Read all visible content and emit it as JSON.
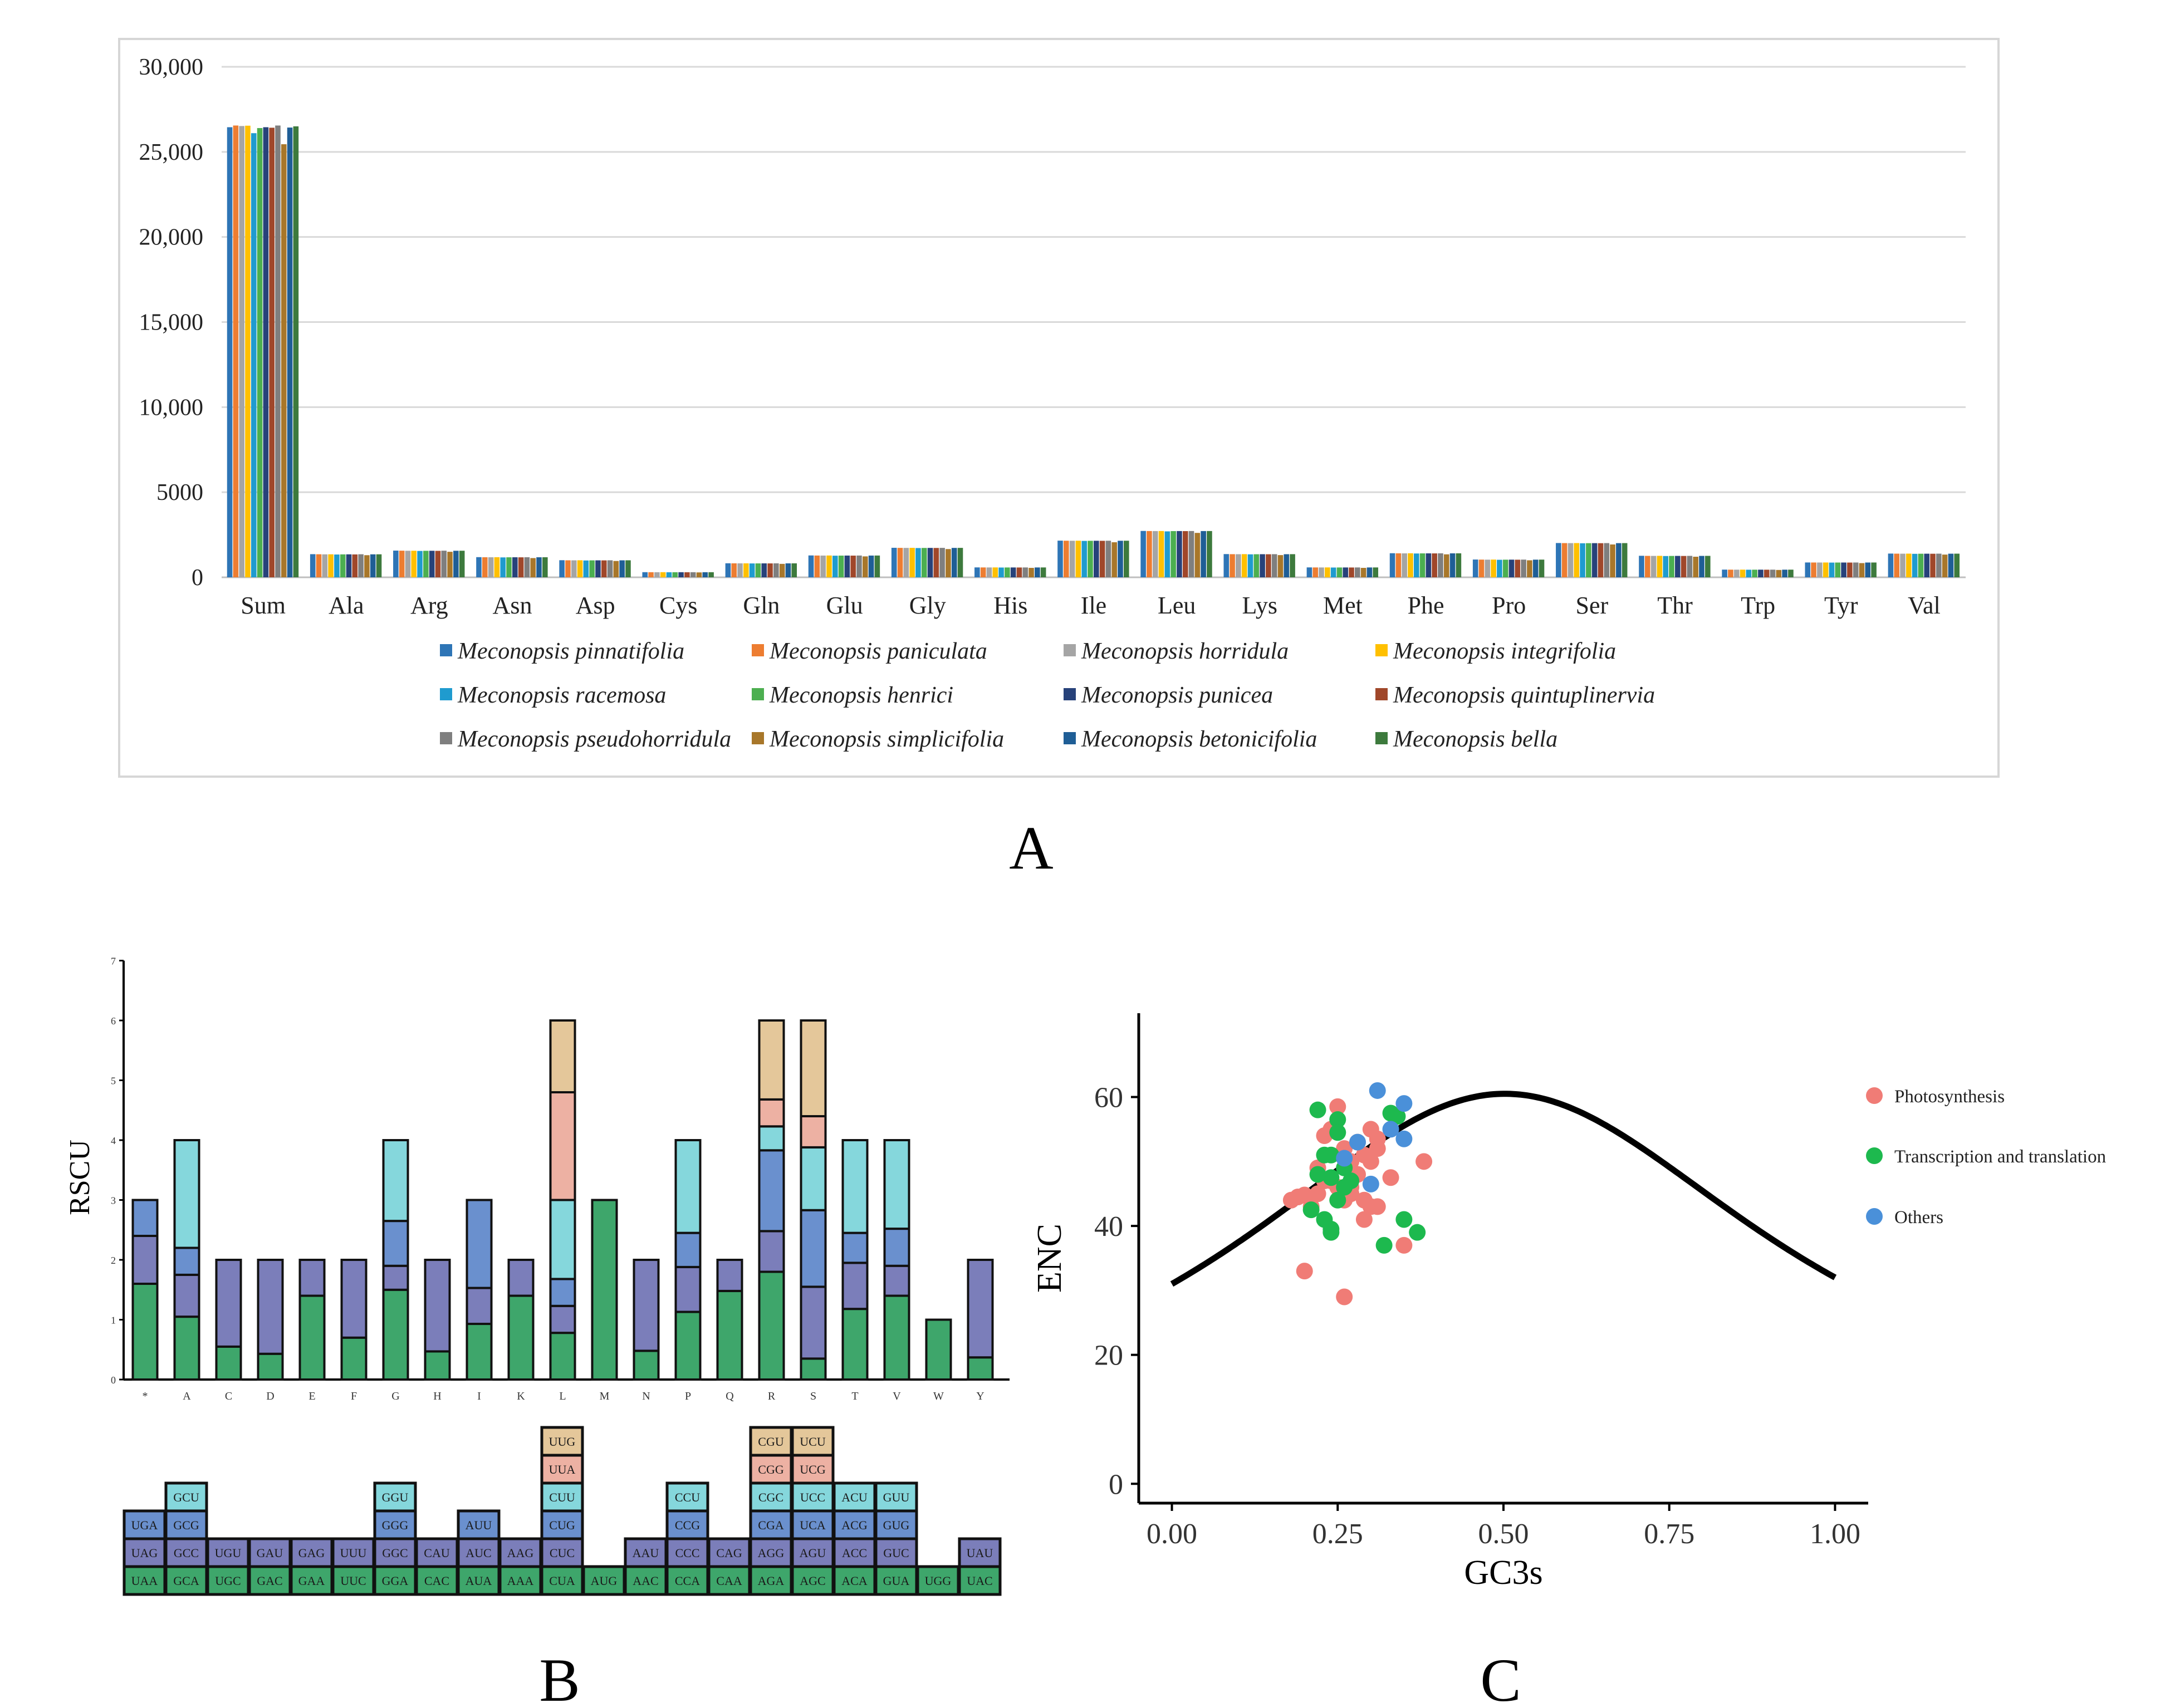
{
  "panel_labels": {
    "a": "A",
    "b": "B",
    "c": "C"
  },
  "chart_data": [
    {
      "id": "A",
      "type": "bar",
      "title": "",
      "xlabel": "",
      "ylabel": "",
      "ylim": [
        0,
        30000
      ],
      "yticks": [
        0,
        5000,
        10000,
        15000,
        20000,
        25000,
        30000
      ],
      "ytick_labels": [
        "0",
        "5000",
        "10,000",
        "15,000",
        "20,000",
        "25,000",
        "30,000"
      ],
      "grid": true,
      "legend_position": "bottom",
      "categories": [
        "Sum",
        "Ala",
        "Arg",
        "Asn",
        "Asp",
        "Cys",
        "Gln",
        "Glu",
        "Gly",
        "His",
        "Ile",
        "Leu",
        "Lys",
        "Met",
        "Phe",
        "Pro",
        "Ser",
        "Thr",
        "Trp",
        "Tyr",
        "Val"
      ],
      "base_values": [
        26450,
        1350,
        1560,
        1180,
        1000,
        300,
        820,
        1280,
        1730,
        580,
        2150,
        2720,
        1360,
        580,
        1410,
        1040,
        2010,
        1260,
        450,
        870,
        1390
      ],
      "series": [
        {
          "name": "Meconopsis pinnatifolia",
          "color": "#2E75B6",
          "values": [
            26450,
            1360,
            1570,
            1185,
            1005,
            302,
            825,
            1285,
            1735,
            582,
            2155,
            2725,
            1365,
            582,
            1415,
            1045,
            2015,
            1265,
            452,
            872,
            1395
          ]
        },
        {
          "name": "Meconopsis paniculata",
          "color": "#ED7D31",
          "values": [
            26550,
            1355,
            1565,
            1180,
            1000,
            300,
            822,
            1280,
            1730,
            580,
            2150,
            2720,
            1360,
            580,
            1410,
            1040,
            2010,
            1260,
            450,
            870,
            1390
          ]
        },
        {
          "name": "Meconopsis horridula",
          "color": "#A5A5A5",
          "values": [
            26520,
            1350,
            1560,
            1178,
            998,
            299,
            820,
            1278,
            1728,
            579,
            2148,
            2718,
            1358,
            579,
            1408,
            1038,
            2008,
            1258,
            449,
            869,
            1388
          ]
        },
        {
          "name": "Meconopsis integrifolia",
          "color": "#FFC000",
          "values": [
            26540,
            1352,
            1562,
            1182,
            1002,
            301,
            821,
            1282,
            1732,
            581,
            2152,
            2722,
            1362,
            581,
            1412,
            1042,
            2012,
            1262,
            451,
            871,
            1392
          ]
        },
        {
          "name": "Meconopsis racemosa",
          "color": "#1F9BCF",
          "values": [
            26100,
            1340,
            1550,
            1170,
            990,
            297,
            815,
            1270,
            1720,
            575,
            2140,
            2700,
            1350,
            575,
            1400,
            1030,
            2000,
            1250,
            446,
            865,
            1380
          ]
        },
        {
          "name": "Meconopsis henrici",
          "color": "#4CAF50",
          "values": [
            26400,
            1348,
            1558,
            1176,
            996,
            299,
            818,
            1276,
            1726,
            578,
            2146,
            2716,
            1356,
            578,
            1406,
            1036,
            2006,
            1256,
            448,
            868,
            1386
          ]
        },
        {
          "name": "Meconopsis punicea",
          "color": "#27427A",
          "values": [
            26450,
            1350,
            1560,
            1178,
            998,
            300,
            820,
            1278,
            1728,
            579,
            2148,
            2718,
            1358,
            579,
            1408,
            1038,
            2008,
            1258,
            449,
            869,
            1388
          ]
        },
        {
          "name": "Meconopsis quintuplinervia",
          "color": "#A0472A",
          "values": [
            26420,
            1345,
            1555,
            1175,
            995,
            298,
            817,
            1275,
            1725,
            577,
            2145,
            2715,
            1355,
            577,
            1405,
            1035,
            2005,
            1255,
            447,
            867,
            1385
          ]
        },
        {
          "name": "Meconopsis pseudohorridula",
          "color": "#7F7F7F",
          "values": [
            26550,
            1355,
            1565,
            1180,
            1000,
            300,
            822,
            1280,
            1730,
            580,
            2150,
            2720,
            1360,
            580,
            1410,
            1040,
            2010,
            1260,
            450,
            870,
            1390
          ]
        },
        {
          "name": "Meconopsis simplicifolia",
          "color": "#A8772A",
          "values": [
            25450,
            1300,
            1500,
            1130,
            960,
            288,
            790,
            1230,
            1660,
            555,
            2060,
            2610,
            1305,
            555,
            1350,
            1000,
            1930,
            1210,
            432,
            835,
            1335
          ]
        },
        {
          "name": "Meconopsis betonicifolia",
          "color": "#1F5E96",
          "values": [
            26430,
            1350,
            1560,
            1178,
            998,
            300,
            820,
            1278,
            1728,
            579,
            2148,
            2718,
            1358,
            579,
            1408,
            1038,
            2008,
            1258,
            449,
            869,
            1388
          ]
        },
        {
          "name": "Meconopsis bella",
          "color": "#3D7A3D",
          "values": [
            26500,
            1352,
            1562,
            1180,
            1000,
            300,
            821,
            1280,
            1730,
            580,
            2150,
            2720,
            1360,
            580,
            1410,
            1040,
            2010,
            1260,
            450,
            870,
            1390
          ]
        }
      ]
    },
    {
      "id": "B",
      "type": "bar",
      "stacked": true,
      "title": "",
      "xlabel": "",
      "ylabel": "RSCU",
      "ylim": [
        0,
        7
      ],
      "yticks": [
        0,
        1,
        2,
        3,
        4,
        5,
        6,
        7
      ],
      "palette": [
        "#3EA66B",
        "#7B7EBA",
        "#6A90CE",
        "#85D7DC",
        "#EDB1A3",
        "#E4C79A"
      ],
      "categories": [
        "*",
        "A",
        "C",
        "D",
        "E",
        "F",
        "G",
        "H",
        "I",
        "K",
        "L",
        "M",
        "N",
        "P",
        "Q",
        "R",
        "S",
        "T",
        "V",
        "W",
        "Y"
      ],
      "stacks": [
        [
          {
            "codon": "UAA",
            "value": 1.6
          },
          {
            "codon": "UAG",
            "value": 0.8
          },
          {
            "codon": "UGA",
            "value": 0.6
          }
        ],
        [
          {
            "codon": "GCA",
            "value": 1.05
          },
          {
            "codon": "GCC",
            "value": 0.7
          },
          {
            "codon": "GCG",
            "value": 0.45
          },
          {
            "codon": "GCU",
            "value": 1.8
          }
        ],
        [
          {
            "codon": "UGC",
            "value": 0.55
          },
          {
            "codon": "UGU",
            "value": 1.45
          }
        ],
        [
          {
            "codon": "GAC",
            "value": 0.43
          },
          {
            "codon": "GAU",
            "value": 1.57
          }
        ],
        [
          {
            "codon": "GAA",
            "value": 1.4
          },
          {
            "codon": "GAG",
            "value": 0.6
          }
        ],
        [
          {
            "codon": "UUC",
            "value": 0.7
          },
          {
            "codon": "UUU",
            "value": 1.3
          }
        ],
        [
          {
            "codon": "GGA",
            "value": 1.5
          },
          {
            "codon": "GGC",
            "value": 0.4
          },
          {
            "codon": "GGG",
            "value": 0.75
          },
          {
            "codon": "GGU",
            "value": 1.35
          }
        ],
        [
          {
            "codon": "CAC",
            "value": 0.47
          },
          {
            "codon": "CAU",
            "value": 1.53
          }
        ],
        [
          {
            "codon": "AUA",
            "value": 0.93
          },
          {
            "codon": "AUC",
            "value": 0.6
          },
          {
            "codon": "AUU",
            "value": 1.47
          }
        ],
        [
          {
            "codon": "AAA",
            "value": 1.4
          },
          {
            "codon": "AAG",
            "value": 0.6
          }
        ],
        [
          {
            "codon": "CUA",
            "value": 0.78
          },
          {
            "codon": "CUC",
            "value": 0.45
          },
          {
            "codon": "CUG",
            "value": 0.45
          },
          {
            "codon": "CUU",
            "value": 1.32
          },
          {
            "codon": "UUA",
            "value": 1.8
          },
          {
            "codon": "UUG",
            "value": 1.2
          }
        ],
        [
          {
            "codon": "AUG",
            "value": 3.0
          }
        ],
        [
          {
            "codon": "AAC",
            "value": 0.48
          },
          {
            "codon": "AAU",
            "value": 1.52
          }
        ],
        [
          {
            "codon": "CCA",
            "value": 1.13
          },
          {
            "codon": "CCC",
            "value": 0.75
          },
          {
            "codon": "CCG",
            "value": 0.57
          },
          {
            "codon": "CCU",
            "value": 1.55
          }
        ],
        [
          {
            "codon": "CAA",
            "value": 1.48
          },
          {
            "codon": "CAG",
            "value": 0.52
          }
        ],
        [
          {
            "codon": "AGA",
            "value": 1.8
          },
          {
            "codon": "AGG",
            "value": 0.68
          },
          {
            "codon": "CGA",
            "value": 1.35
          },
          {
            "codon": "CGC",
            "value": 0.4
          },
          {
            "codon": "CGG",
            "value": 0.45
          },
          {
            "codon": "CGU",
            "value": 1.32
          }
        ],
        [
          {
            "codon": "AGC",
            "value": 0.35
          },
          {
            "codon": "AGU",
            "value": 1.2
          },
          {
            "codon": "UCA",
            "value": 1.28
          },
          {
            "codon": "UCC",
            "value": 1.05
          },
          {
            "codon": "UCG",
            "value": 0.52
          },
          {
            "codon": "UCU",
            "value": 1.6
          }
        ],
        [
          {
            "codon": "ACA",
            "value": 1.18
          },
          {
            "codon": "ACC",
            "value": 0.77
          },
          {
            "codon": "ACG",
            "value": 0.5
          },
          {
            "codon": "ACU",
            "value": 1.55
          }
        ],
        [
          {
            "codon": "GUA",
            "value": 1.4
          },
          {
            "codon": "GUC",
            "value": 0.5
          },
          {
            "codon": "GUG",
            "value": 0.62
          },
          {
            "codon": "GUU",
            "value": 1.48
          }
        ],
        [
          {
            "codon": "UGG",
            "value": 1.0
          }
        ],
        [
          {
            "codon": "UAC",
            "value": 0.37
          },
          {
            "codon": "UAU",
            "value": 1.63
          }
        ]
      ]
    },
    {
      "id": "C",
      "type": "scatter",
      "title": "",
      "xlabel": "GC3s",
      "ylabel": "ENC",
      "xlim": [
        -0.05,
        1.05
      ],
      "ylim": [
        -3,
        73
      ],
      "xticks": [
        0.0,
        0.25,
        0.5,
        0.75,
        1.0
      ],
      "xtick_labels": [
        "0.00",
        "0.25",
        "0.50",
        "0.75",
        "1.00"
      ],
      "yticks": [
        0,
        20,
        40,
        60
      ],
      "yticks_labels": [
        "0",
        "20",
        "40",
        "60"
      ],
      "legend_position": "right",
      "expected_curve": "ENC = 2 + s + 29 / (s^2 + (1 - s)^2)",
      "series": [
        {
          "name": "Photosynthesis",
          "color": "#F07C76",
          "points": [
            [
              0.25,
              58.5
            ],
            [
              0.24,
              55
            ],
            [
              0.3,
              55
            ],
            [
              0.28,
              53
            ],
            [
              0.26,
              52
            ],
            [
              0.29,
              51
            ],
            [
              0.3,
              50
            ],
            [
              0.31,
              52
            ],
            [
              0.38,
              50
            ],
            [
              0.22,
              49
            ],
            [
              0.27,
              50
            ],
            [
              0.28,
              48
            ],
            [
              0.24,
              47
            ],
            [
              0.33,
              47.5
            ],
            [
              0.25,
              46
            ],
            [
              0.27,
              46
            ],
            [
              0.22,
              45
            ],
            [
              0.2,
              44.8
            ],
            [
              0.19,
              44.5
            ],
            [
              0.18,
              44
            ],
            [
              0.26,
              44
            ],
            [
              0.29,
              44
            ],
            [
              0.3,
              43
            ],
            [
              0.31,
              43
            ],
            [
              0.29,
              41
            ],
            [
              0.21,
              43
            ],
            [
              0.35,
              37
            ],
            [
              0.2,
              33
            ],
            [
              0.26,
              29
            ],
            [
              0.23,
              54
            ],
            [
              0.31,
              53.5
            ],
            [
              0.27,
              45
            ],
            [
              0.23,
              47
            ]
          ]
        },
        {
          "name": "Transcription and translation",
          "color": "#1DB94E",
          "points": [
            [
              0.22,
              58
            ],
            [
              0.25,
              56.5
            ],
            [
              0.25,
              54.5
            ],
            [
              0.33,
              57.5
            ],
            [
              0.24,
              51
            ],
            [
              0.23,
              51
            ],
            [
              0.26,
              49
            ],
            [
              0.24,
              47.5
            ],
            [
              0.25,
              44
            ],
            [
              0.27,
              47
            ],
            [
              0.21,
              42.5
            ],
            [
              0.23,
              41
            ],
            [
              0.24,
              39.5
            ],
            [
              0.35,
              41
            ],
            [
              0.37,
              39
            ],
            [
              0.32,
              37
            ],
            [
              0.24,
              39
            ],
            [
              0.34,
              57
            ],
            [
              0.26,
              46
            ],
            [
              0.22,
              48
            ]
          ]
        },
        {
          "name": "Others",
          "color": "#4A90D9",
          "points": [
            [
              0.31,
              61
            ],
            [
              0.35,
              59
            ],
            [
              0.33,
              55
            ],
            [
              0.35,
              53.5
            ],
            [
              0.28,
              53
            ],
            [
              0.3,
              46.5
            ],
            [
              0.26,
              50.5
            ]
          ]
        }
      ]
    }
  ]
}
